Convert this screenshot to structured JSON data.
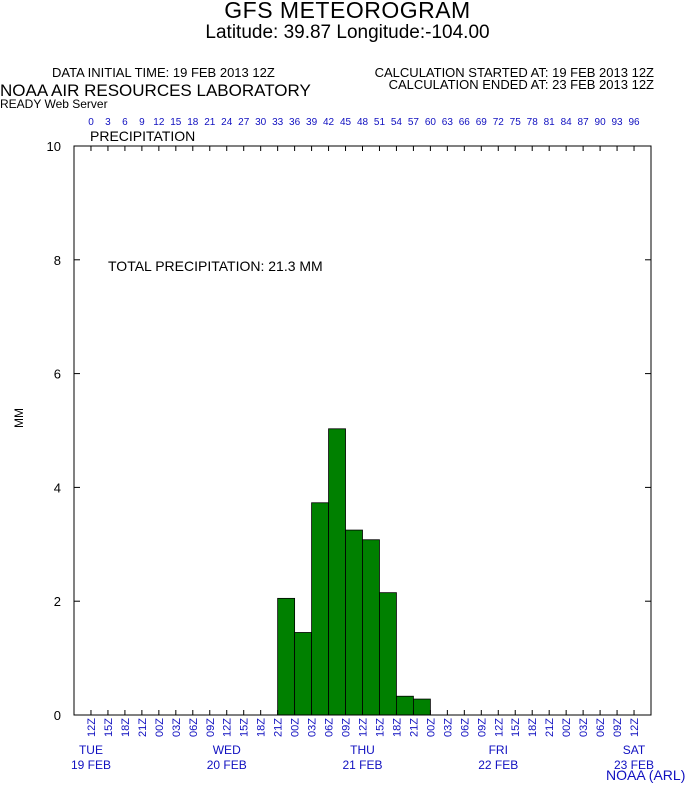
{
  "header": {
    "title": "GFS METEOROGRAM",
    "subtitle": "Latitude: 39.87 Longitude:-104.00",
    "init_time": "DATA INITIAL TIME: 19 FEB 2013 12Z",
    "calc_started": "CALCULATION STARTED AT: 19 FEB 2013 12Z",
    "calc_ended": "CALCULATION ENDED AT: 23 FEB 2013 12Z",
    "lab": "NOAA AIR RESOURCES LABORATORY",
    "server": "READY Web Server"
  },
  "footer": {
    "credit": "NOAA (ARL)"
  },
  "colors": {
    "bar": "#008000",
    "blue_text": "#1010c0",
    "axis": "#000000"
  },
  "chart_data": {
    "type": "bar",
    "title": "PRECIPITATION",
    "annotation": "TOTAL PRECIPITATION:  21.3 MM",
    "ylabel": "MM",
    "ylim": [
      0,
      10
    ],
    "yticks": [
      0,
      2,
      4,
      6,
      8,
      10
    ],
    "forecast_hours": [
      0,
      3,
      6,
      9,
      12,
      15,
      18,
      21,
      24,
      27,
      30,
      33,
      36,
      39,
      42,
      45,
      48,
      51,
      54,
      57,
      60,
      63,
      66,
      69,
      72,
      75,
      78,
      81,
      84,
      87,
      90,
      93,
      96
    ],
    "time_labels": [
      "12Z",
      "15Z",
      "18Z",
      "21Z",
      "00Z",
      "03Z",
      "06Z",
      "09Z",
      "12Z",
      "15Z",
      "18Z",
      "21Z",
      "00Z",
      "03Z",
      "06Z",
      "09Z",
      "12Z",
      "15Z",
      "18Z",
      "21Z",
      "00Z",
      "03Z",
      "06Z",
      "09Z",
      "12Z",
      "15Z",
      "18Z",
      "21Z",
      "00Z",
      "03Z",
      "06Z",
      "09Z",
      "12Z"
    ],
    "days": [
      {
        "name": "TUE",
        "date": "19 FEB",
        "hour": 0
      },
      {
        "name": "WED",
        "date": "20 FEB",
        "hour": 24
      },
      {
        "name": "THU",
        "date": "21 FEB",
        "hour": 48
      },
      {
        "name": "FRI",
        "date": "22 FEB",
        "hour": 72
      },
      {
        "name": "SAT",
        "date": "23 FEB",
        "hour": 96
      }
    ],
    "bars": [
      {
        "start_hour": 33,
        "end_hour": 36,
        "value": 2.05
      },
      {
        "start_hour": 36,
        "end_hour": 39,
        "value": 1.45
      },
      {
        "start_hour": 39,
        "end_hour": 42,
        "value": 3.73
      },
      {
        "start_hour": 42,
        "end_hour": 45,
        "value": 5.03
      },
      {
        "start_hour": 45,
        "end_hour": 48,
        "value": 3.25
      },
      {
        "start_hour": 48,
        "end_hour": 51,
        "value": 3.08
      },
      {
        "start_hour": 51,
        "end_hour": 54,
        "value": 2.15
      },
      {
        "start_hour": 54,
        "end_hour": 57,
        "value": 0.33
      },
      {
        "start_hour": 57,
        "end_hour": 60,
        "value": 0.28
      }
    ]
  }
}
